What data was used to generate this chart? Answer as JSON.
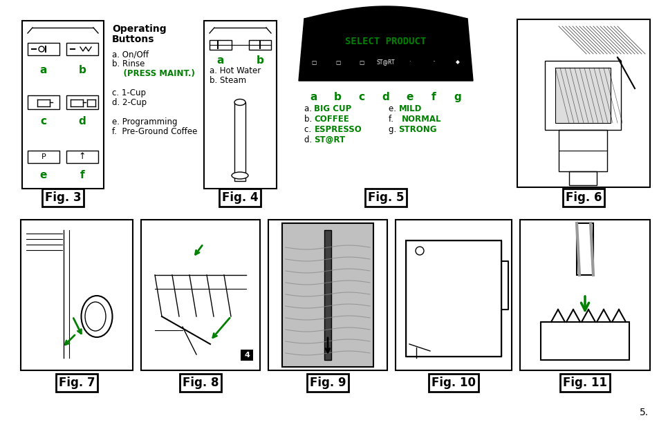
{
  "page_bg": "#ffffff",
  "green": "#008000",
  "black": "#000000",
  "title_line1": "Operating",
  "title_line2": "Buttons",
  "fig3_desc": [
    [
      "a. On/Off",
      "black",
      false
    ],
    [
      "b. Rinse",
      "black",
      false
    ],
    [
      "    (PRESS MAINT.)",
      "#008000",
      true
    ],
    [
      "",
      "black",
      false
    ],
    [
      "c. 1-Cup",
      "black",
      false
    ],
    [
      "d. 2-Cup",
      "black",
      false
    ],
    [
      "",
      "black",
      false
    ],
    [
      "e. Programming",
      "black",
      false
    ],
    [
      "f.  Pre-Ground Coffee",
      "black",
      false
    ]
  ],
  "fig4_desc": [
    "a. Hot Water",
    "b. Steam"
  ],
  "fig5_title": "SELECT PRODUCT",
  "fig5_labels": [
    "a",
    "b",
    "c",
    "d",
    "e",
    "f",
    "g"
  ],
  "fig5_desc_left": [
    [
      "a. ",
      "BIG CUP"
    ],
    [
      "b. ",
      "COFFEE"
    ],
    [
      "c. ",
      "ESPRESSO"
    ],
    [
      "d. ",
      "ST@RT"
    ]
  ],
  "fig5_desc_right": [
    [
      "e. ",
      "MILD"
    ],
    [
      "f.  ",
      "NORMAL"
    ],
    [
      "g. ",
      "STRONG"
    ]
  ],
  "fig_captions_top": [
    "Fig. 3",
    "Fig. 4",
    "Fig. 5",
    "Fig. 6"
  ],
  "fig_captions_bottom": [
    "Fig. 7",
    "Fig. 8",
    "Fig. 9",
    "Fig. 10",
    "Fig. 11"
  ],
  "page_number": "5."
}
